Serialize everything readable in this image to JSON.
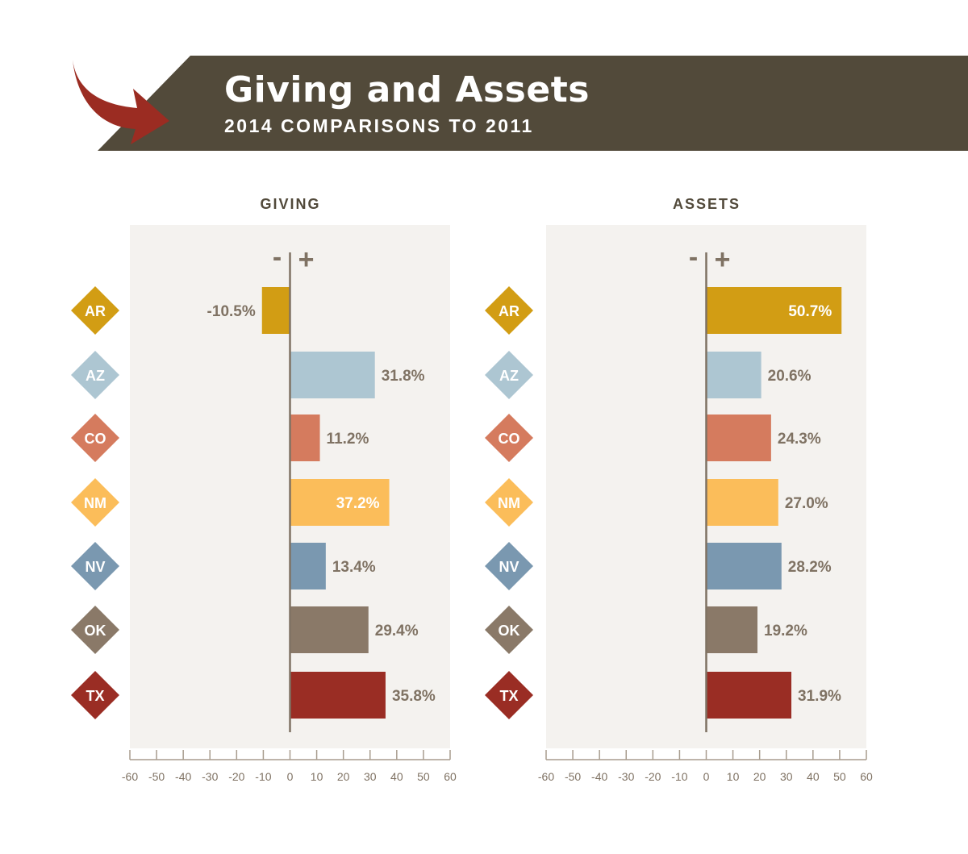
{
  "header": {
    "title": "Giving and Assets",
    "subtitle": "2014 COMPARISONS TO 2011",
    "band_color": "#524a3a",
    "arrow_color": "#9b2c22"
  },
  "sign_labels": {
    "minus": "-",
    "plus": "+"
  },
  "state_colors": {
    "AR": "#d29d14",
    "AZ": "#adc6d2",
    "CO": "#d57b5e",
    "NM": "#fbbd5a",
    "NV": "#7a98b0",
    "OK": "#8a7968",
    "TX": "#9a2d24"
  },
  "chart_data": [
    {
      "type": "bar",
      "orientation": "horizontal",
      "title": "GIVING",
      "categories": [
        "AR",
        "AZ",
        "CO",
        "NM",
        "NV",
        "OK",
        "TX"
      ],
      "values": [
        -10.5,
        31.8,
        11.2,
        37.2,
        13.4,
        29.4,
        35.8
      ],
      "labels": [
        "-10.5%",
        "31.8%",
        "11.2%",
        "37.2%",
        "13.4%",
        "29.4%",
        "35.8%"
      ],
      "xlim": [
        -60,
        60
      ],
      "xticks": [
        "-60",
        "-50",
        "-40",
        "-30",
        "-20",
        "-10",
        "0",
        "10",
        "20",
        "30",
        "40",
        "50",
        "60"
      ],
      "grid": false
    },
    {
      "type": "bar",
      "orientation": "horizontal",
      "title": "ASSETS",
      "categories": [
        "AR",
        "AZ",
        "CO",
        "NM",
        "NV",
        "OK",
        "TX"
      ],
      "values": [
        50.7,
        20.6,
        24.3,
        27.0,
        28.2,
        19.2,
        31.9
      ],
      "labels": [
        "50.7%",
        "20.6%",
        "24.3%",
        "27.0%",
        "28.2%",
        "19.2%",
        "31.9%"
      ],
      "xlim": [
        -60,
        60
      ],
      "xticks": [
        "-60",
        "-50",
        "-40",
        "-30",
        "-20",
        "-10",
        "0",
        "10",
        "20",
        "30",
        "40",
        "50",
        "60"
      ],
      "grid": false
    }
  ]
}
